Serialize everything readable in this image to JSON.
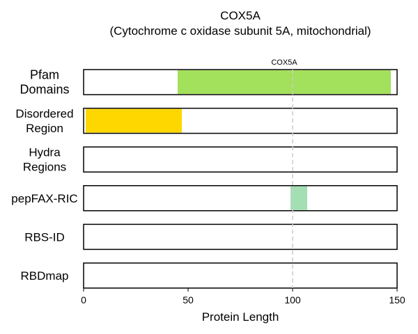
{
  "chart_data": {
    "type": "bar",
    "title": "COX5A",
    "subtitle": "(Cytochrome c oxidase subunit 5A, mitochondrial)",
    "xlabel": "Protein Length",
    "xlim": [
      0,
      150
    ],
    "xticks": [
      0,
      50,
      100,
      150
    ],
    "tracks": [
      {
        "name": "Pfam Domains",
        "label_lines": [
          "Pfam",
          "Domains"
        ],
        "segments": [
          {
            "start": 45,
            "end": 147,
            "color": "#a3e05c"
          }
        ]
      },
      {
        "name": "Disordered Region",
        "label_lines": [
          "Disordered",
          "Region"
        ],
        "segments": [
          {
            "start": 1,
            "end": 47,
            "color": "#ffd700"
          }
        ]
      },
      {
        "name": "Hydra Regions",
        "label_lines": [
          "Hydra",
          "Regions"
        ],
        "segments": []
      },
      {
        "name": "pepFAX-RIC",
        "label_lines": [
          "pepFAX-RIC"
        ],
        "segments": [
          {
            "start": 99,
            "end": 107,
            "color": "#a2dfb3"
          }
        ]
      },
      {
        "name": "RBS-ID",
        "label_lines": [
          "RBS-ID"
        ],
        "segments": []
      },
      {
        "name": "RBDmap",
        "label_lines": [
          "RBDmap"
        ],
        "segments": []
      }
    ],
    "annotations": [
      {
        "label": "COX5A",
        "x": 100,
        "style": "dashed-vertical-line",
        "color": "#cccccc"
      }
    ],
    "grid": false
  }
}
